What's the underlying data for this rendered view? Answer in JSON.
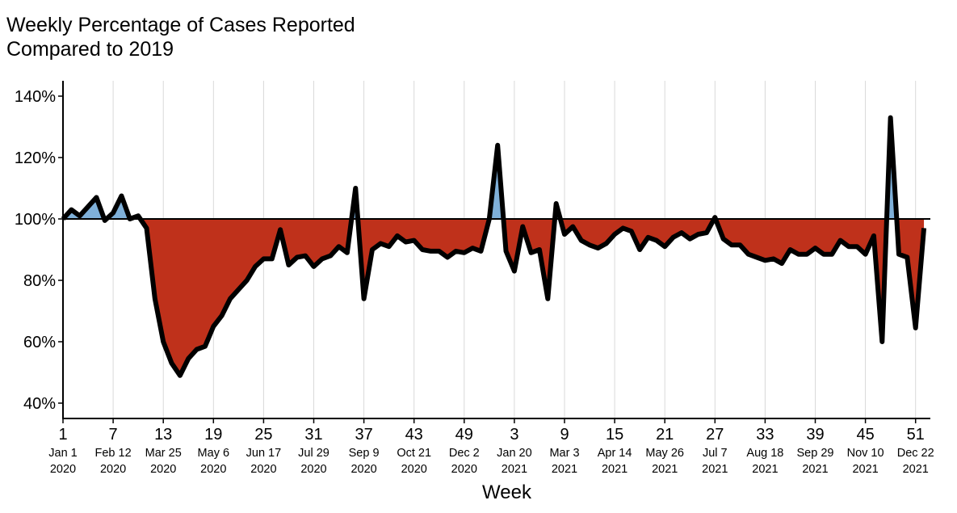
{
  "chart_data": {
    "type": "area",
    "title_line1": "Weekly Percentage of Cases Reported",
    "title_line2": "Compared to 2019",
    "xlabel": "Week",
    "ylabel": "",
    "ylim": [
      35,
      145
    ],
    "baseline": 100,
    "grid": "vertical",
    "colors": {
      "above": "#7fb0d9",
      "below": "#bf311b",
      "line": "#000000",
      "grid": "#d9d9d9"
    },
    "yticks": [
      40,
      60,
      80,
      100,
      120,
      140
    ],
    "ytick_labels": [
      "40%",
      "60%",
      "80%",
      "100%",
      "120%",
      "140%"
    ],
    "xticks": [
      {
        "week": "1",
        "date": "Jan 1",
        "year": "2020"
      },
      {
        "week": "7",
        "date": "Feb 12",
        "year": "2020"
      },
      {
        "week": "13",
        "date": "Mar 25",
        "year": "2020"
      },
      {
        "week": "19",
        "date": "May 6",
        "year": "2020"
      },
      {
        "week": "25",
        "date": "Jun 17",
        "year": "2020"
      },
      {
        "week": "31",
        "date": "Jul 29",
        "year": "2020"
      },
      {
        "week": "37",
        "date": "Sep 9",
        "year": "2020"
      },
      {
        "week": "43",
        "date": "Oct 21",
        "year": "2020"
      },
      {
        "week": "49",
        "date": "Dec 2",
        "year": "2020"
      },
      {
        "week": "3",
        "date": "Jan 20",
        "year": "2021"
      },
      {
        "week": "9",
        "date": "Mar 3",
        "year": "2021"
      },
      {
        "week": "15",
        "date": "Apr 14",
        "year": "2021"
      },
      {
        "week": "21",
        "date": "May 26",
        "year": "2021"
      },
      {
        "week": "27",
        "date": "Jul 7",
        "year": "2021"
      },
      {
        "week": "33",
        "date": "Aug 18",
        "year": "2021"
      },
      {
        "week": "39",
        "date": "Sep 29",
        "year": "2021"
      },
      {
        "week": "45",
        "date": "Nov 10",
        "year": "2021"
      },
      {
        "week": "51",
        "date": "Dec 22",
        "year": "2021"
      }
    ],
    "series": [
      {
        "years": [
          2020,
          2021
        ],
        "weeks_per_year": 52,
        "values": [
          100,
          103,
          101,
          104,
          107,
          99.5,
          102,
          107.5,
          100,
          101,
          97,
          74,
          60,
          53,
          49,
          54.5,
          57.5,
          58.5,
          65,
          68.5,
          74,
          77,
          80,
          84.5,
          87,
          87,
          96.5,
          85,
          87.5,
          88,
          84.5,
          87,
          88,
          91,
          89,
          110,
          74,
          90,
          92,
          91,
          94.5,
          92.5,
          93,
          90,
          89.5,
          89.5,
          87.5,
          89.5,
          89,
          90.5,
          89.5,
          100,
          124,
          89.5,
          83,
          97.5,
          89,
          90,
          74,
          105,
          95,
          97.5,
          93,
          91.5,
          90.5,
          92,
          95,
          97,
          96,
          90,
          94,
          93,
          91,
          94,
          95.5,
          93.5,
          95,
          95.5,
          100.5,
          93.5,
          91.5,
          91.5,
          88.5,
          87.5,
          86.5,
          87,
          85.5,
          90,
          88.5,
          88.5,
          90.5,
          88.5,
          88.5,
          93,
          91,
          91,
          88.5,
          94.5,
          60,
          133,
          88.5,
          87.5,
          64.5,
          97
        ]
      }
    ]
  }
}
